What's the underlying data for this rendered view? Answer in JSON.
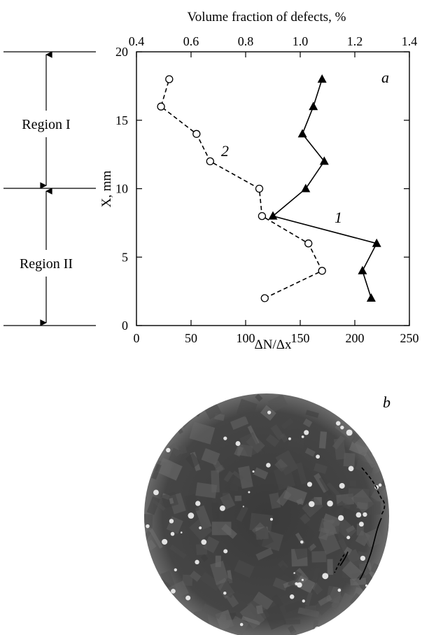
{
  "chart_data": {
    "type": "line",
    "panel_labels": {
      "a": "a",
      "b": "b"
    },
    "top_axis": {
      "label": "Volume fraction of defects, %",
      "range": [
        0.4,
        1.4
      ],
      "ticks": [
        "0.4",
        "0.6",
        "0.8",
        "1.0",
        "1.2",
        "1.4"
      ]
    },
    "bottom_axis": {
      "label": "ΔN/Δx",
      "range": [
        0,
        250
      ],
      "ticks": [
        "0",
        "50",
        "100",
        "150",
        "200",
        "250"
      ]
    },
    "left_axis": {
      "label": "X, mm",
      "range": [
        0,
        20
      ],
      "ticks": [
        "0",
        "5",
        "10",
        "15",
        "20"
      ]
    },
    "regions": [
      {
        "label": "Region I",
        "from": 10,
        "to": 20
      },
      {
        "label": "Region II",
        "from": 0,
        "to": 10
      }
    ],
    "series": [
      {
        "name": "1",
        "axis": "bottom",
        "marker": "filled-triangle",
        "line": "solid",
        "x": [
          215,
          207,
          220,
          125,
          155,
          172,
          152,
          162,
          170
        ],
        "y": [
          2,
          4,
          6,
          8,
          10,
          12,
          14,
          16,
          18
        ]
      },
      {
        "name": "2",
        "axis": "top",
        "marker": "open-circle",
        "line": "dashed",
        "x": [
          0.87,
          1.08,
          1.03,
          0.86,
          0.85,
          0.67,
          0.62,
          0.49,
          0.52
        ],
        "y": [
          2,
          4,
          6,
          8,
          10,
          12,
          14,
          16,
          18
        ]
      }
    ]
  },
  "micrograph": {
    "description_icon": "circular-micrograph-disc",
    "background_color": "#3c3c3c"
  }
}
